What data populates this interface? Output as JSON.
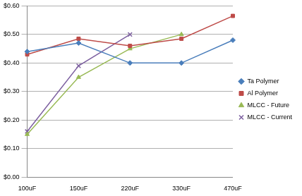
{
  "chart_data": {
    "type": "line",
    "categories": [
      "100uF",
      "150uF",
      "220uF",
      "330uF",
      "470uF"
    ],
    "series": [
      {
        "name": "Ta Polymer",
        "color": "#4a7ebb",
        "marker": "diamond",
        "values": [
          0.44,
          0.47,
          0.4,
          0.4,
          0.48
        ]
      },
      {
        "name": "Al Polymer",
        "color": "#be4b48",
        "marker": "square",
        "values": [
          0.43,
          0.485,
          0.46,
          0.485,
          0.565
        ]
      },
      {
        "name": "MLCC - Future",
        "color": "#98b954",
        "marker": "triangle",
        "values": [
          0.15,
          0.35,
          0.45,
          0.5,
          null
        ]
      },
      {
        "name": "MLCC - Current",
        "color": "#7d60a0",
        "marker": "cross",
        "values": [
          0.16,
          0.39,
          0.5,
          null,
          null
        ]
      }
    ],
    "ylim": [
      0,
      0.6
    ],
    "yticks": [
      {
        "value": 0,
        "label": "$0.00"
      },
      {
        "value": 0.1,
        "label": "$0.10"
      },
      {
        "value": 0.2,
        "label": "$0.20"
      },
      {
        "value": 0.3,
        "label": "$0.30"
      },
      {
        "value": 0.4,
        "label": "$0.40"
      },
      {
        "value": 0.5,
        "label": "$0.50"
      },
      {
        "value": 0.6,
        "label": "$0.60"
      }
    ],
    "grid": true,
    "legend": "right"
  }
}
